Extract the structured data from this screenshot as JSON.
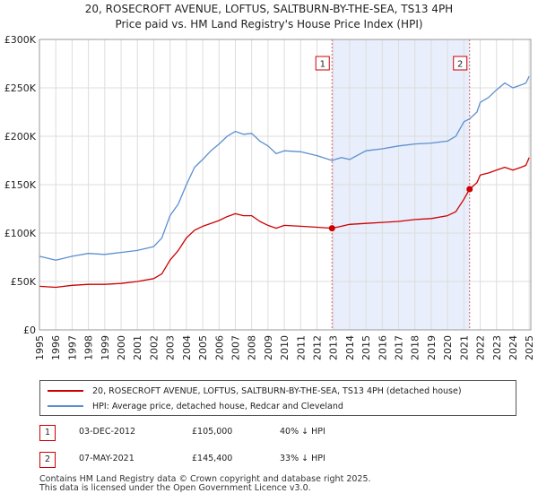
{
  "title_line1": "20, ROSECROFT AVENUE, LOFTUS, SALTBURN-BY-THE-SEA, TS13 4PH",
  "title_line2": "Price paid vs. HM Land Registry's House Price Index (HPI)",
  "colors": {
    "price": "#cc0000",
    "hpi": "#5b8fd0",
    "shade": "#e8eefb",
    "vline": "#e06060"
  },
  "chart_data": {
    "type": "line",
    "xlim": [
      1995,
      2025.1
    ],
    "ylim": [
      0,
      300000
    ],
    "yticks": [
      0,
      50000,
      100000,
      150000,
      200000,
      250000,
      300000
    ],
    "yticklabels": [
      "£0",
      "£50K",
      "£100K",
      "£150K",
      "£200K",
      "£250K",
      "£300K"
    ],
    "xticks": [
      1995,
      1996,
      1997,
      1998,
      1999,
      2000,
      2001,
      2002,
      2003,
      2004,
      2005,
      2006,
      2007,
      2008,
      2009,
      2010,
      2011,
      2012,
      2013,
      2014,
      2015,
      2016,
      2017,
      2018,
      2019,
      2020,
      2021,
      2022,
      2023,
      2024,
      2025
    ],
    "xticklabels": [
      "1995",
      "1996",
      "1997",
      "1998",
      "1999",
      "2000",
      "2001",
      "2002",
      "2003",
      "2004",
      "2005",
      "2006",
      "2007",
      "2008",
      "2009",
      "2010",
      "2011",
      "2012",
      "2013",
      "2014",
      "2015",
      "2016",
      "2017",
      "2018",
      "2019",
      "2020",
      "2021",
      "2022",
      "2023",
      "2024",
      "2025"
    ],
    "shaded_range": [
      2012.92,
      2021.35
    ],
    "grid": true,
    "series": [
      {
        "name": "hpi",
        "color": "#5b8fd0",
        "x": [
          1995,
          1996,
          1997,
          1998,
          1999,
          2000,
          2001,
          2002,
          2002.5,
          2003,
          2003.5,
          2004,
          2004.5,
          2005,
          2005.5,
          2006,
          2006.5,
          2007,
          2007.5,
          2008,
          2008.5,
          2009,
          2009.5,
          2010,
          2011,
          2012,
          2012.92,
          2013.5,
          2014,
          2015,
          2016,
          2017,
          2018,
          2019,
          2020,
          2020.5,
          2021,
          2021.35,
          2021.8,
          2022,
          2022.5,
          2023,
          2023.5,
          2024,
          2024.5,
          2024.8,
          2025
        ],
        "y": [
          76000,
          72000,
          76000,
          79000,
          78000,
          80000,
          82000,
          86000,
          95000,
          118000,
          130000,
          150000,
          168000,
          176000,
          185000,
          192000,
          200000,
          205000,
          202000,
          203000,
          195000,
          190000,
          182000,
          185000,
          184000,
          180000,
          175000,
          178000,
          176000,
          185000,
          187000,
          190000,
          192000,
          193000,
          195000,
          200000,
          215000,
          218000,
          225000,
          235000,
          240000,
          248000,
          255000,
          250000,
          253000,
          255000,
          262000
        ]
      },
      {
        "name": "price",
        "color": "#cc0000",
        "x": [
          1995,
          1996,
          1997,
          1998,
          1999,
          2000,
          2001,
          2002,
          2002.5,
          2003,
          2003.5,
          2004,
          2004.5,
          2005,
          2005.5,
          2006,
          2006.5,
          2007,
          2007.5,
          2008,
          2008.5,
          2009,
          2009.5,
          2010,
          2011,
          2012,
          2012.92,
          2013.5,
          2014,
          2015,
          2016,
          2017,
          2018,
          2019,
          2020,
          2020.5,
          2021,
          2021.35,
          2021.8,
          2022,
          2022.5,
          2023,
          2023.5,
          2024,
          2024.5,
          2024.8,
          2025
        ],
        "y": [
          45000,
          44000,
          46000,
          47000,
          47000,
          48000,
          50000,
          53000,
          58000,
          72000,
          82000,
          95000,
          103000,
          107000,
          110000,
          113000,
          117000,
          120000,
          118000,
          118000,
          112000,
          108000,
          105000,
          108000,
          107000,
          106000,
          105000,
          107000,
          109000,
          110000,
          111000,
          112000,
          114000,
          115000,
          118000,
          122000,
          135000,
          145400,
          152000,
          160000,
          162000,
          165000,
          168000,
          165000,
          168000,
          170000,
          178000
        ]
      }
    ],
    "markers": [
      {
        "label": "1",
        "x": 2012.92,
        "y": 105000
      },
      {
        "label": "2",
        "x": 2021.35,
        "y": 145400
      }
    ]
  },
  "legend": {
    "price_label": "20, ROSECROFT AVENUE, LOFTUS, SALTBURN-BY-THE-SEA, TS13 4PH (detached house)",
    "hpi_label": "HPI: Average price, detached house, Redcar and Cleveland"
  },
  "transactions": [
    {
      "num": "1",
      "date": "03-DEC-2012",
      "price": "£105,000",
      "hpi": "40% ↓ HPI"
    },
    {
      "num": "2",
      "date": "07-MAY-2021",
      "price": "£145,400",
      "hpi": "33% ↓ HPI"
    }
  ],
  "footer_line1": "Contains HM Land Registry data © Crown copyright and database right 2025.",
  "footer_line2": "This data is licensed under the Open Government Licence v3.0."
}
